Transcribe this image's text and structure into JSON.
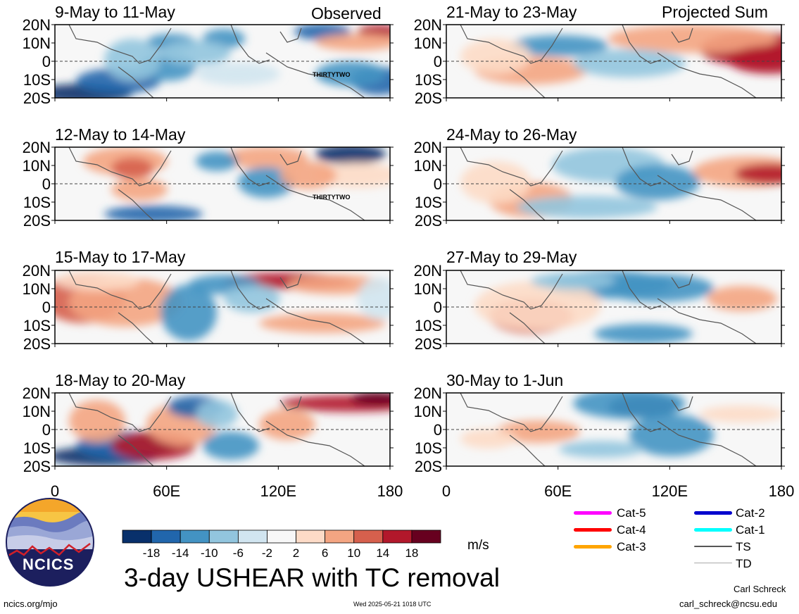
{
  "figure": {
    "main_title": "3-day USHEAR with TC removal",
    "units": "m/s",
    "left_column_label": "Observed",
    "right_column_label": "Projected Sum",
    "logo_text": "NCICS",
    "footer_left": "ncics.org/mjo",
    "footer_center": "Wed 2025-05-21 1018 UTC",
    "author": "Carl Schreck",
    "email": "carl_schreck@ncsu.edu"
  },
  "colors": {
    "scale": [
      "#08306b",
      "#2166ac",
      "#4393c3",
      "#92c5de",
      "#d1e5f0",
      "#f7f7f7",
      "#fddbc7",
      "#f4a582",
      "#d6604d",
      "#b2182b",
      "#67001f"
    ]
  },
  "chart_data": {
    "type": "heatmap",
    "variable": "USHEAR",
    "x_ticks": [
      "0",
      "60E",
      "120E",
      "180"
    ],
    "y_ticks": [
      "20N",
      "10N",
      "0",
      "10S",
      "20S"
    ],
    "xlim": [
      0,
      180
    ],
    "ylim": [
      -20,
      20
    ],
    "colorbar": {
      "ticks": [
        "-18",
        "-14",
        "-10",
        "-6",
        "-2",
        "2",
        "6",
        "10",
        "14",
        "18"
      ]
    },
    "panels": [
      {
        "title": "9-May to 11-May",
        "column": "Observed",
        "storm_label": "THIRTYTWO"
      },
      {
        "title": "12-May to 14-May",
        "column": "Observed",
        "storm_label": "THIRTYTWO"
      },
      {
        "title": "15-May to 17-May",
        "column": "Observed"
      },
      {
        "title": "18-May to 20-May",
        "column": "Observed"
      },
      {
        "title": "21-May to 23-May",
        "column": "Projected Sum"
      },
      {
        "title": "24-May to 26-May",
        "column": "Projected Sum"
      },
      {
        "title": "27-May to 29-May",
        "column": "Projected Sum"
      },
      {
        "title": "30-May to 1-Jun",
        "column": "Projected Sum"
      }
    ],
    "legend": [
      {
        "label": "Cat-5",
        "color": "#ff00ff"
      },
      {
        "label": "Cat-4",
        "color": "#ff0000"
      },
      {
        "label": "Cat-3",
        "color": "#ffa500"
      },
      {
        "label": "Cat-2",
        "color": "#0000cd"
      },
      {
        "label": "Cat-1",
        "color": "#00ffff"
      },
      {
        "label": "TS",
        "color": "#555555"
      },
      {
        "label": "TD",
        "color": "#aaaaaa"
      }
    ]
  }
}
